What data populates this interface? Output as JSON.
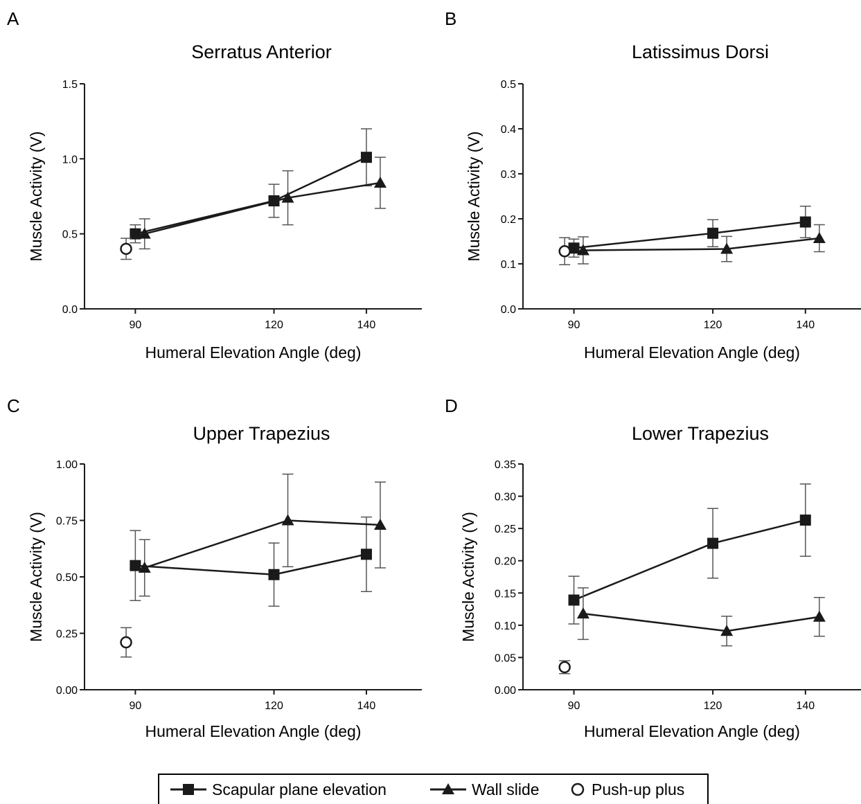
{
  "legend": {
    "items": [
      {
        "label": "Scapular plane elevation",
        "marker": "square-line-icon"
      },
      {
        "label": "Wall slide",
        "marker": "triangle-line-icon"
      },
      {
        "label": "Push-up plus",
        "marker": "open-circle-icon"
      }
    ]
  },
  "chart_data": [
    {
      "type": "line",
      "panel": "A",
      "title": "Serratus Anterior",
      "xlabel": "Humeral Elevation Angle (deg)",
      "ylabel": "Muscle Activity (V)",
      "xlim": [
        79,
        152
      ],
      "ylim": [
        0,
        1.5
      ],
      "xticks": [
        90,
        120,
        140
      ],
      "yticks": [
        0.0,
        0.5,
        1.0,
        1.5
      ],
      "ytick_labels": [
        "0.0",
        "0.5",
        "1.0",
        "1.5"
      ],
      "series": [
        {
          "name": "Scapular plane elevation",
          "marker": "square",
          "x": [
            90,
            120,
            140
          ],
          "y": [
            0.5,
            0.72,
            1.01
          ],
          "err": [
            0.06,
            0.11,
            0.19
          ]
        },
        {
          "name": "Wall slide",
          "marker": "triangle",
          "x": [
            92,
            123,
            143
          ],
          "y": [
            0.5,
            0.74,
            0.84
          ],
          "err": [
            0.1,
            0.18,
            0.17
          ]
        },
        {
          "name": "Push-up plus",
          "marker": "circle",
          "x": [
            88
          ],
          "y": [
            0.4
          ],
          "err": [
            0.07
          ]
        }
      ]
    },
    {
      "type": "line",
      "panel": "B",
      "title": "Latissimus Dorsi",
      "xlabel": "Humeral Elevation Angle (deg)",
      "ylabel": "Muscle Activity (V)",
      "xlim": [
        79,
        152
      ],
      "ylim": [
        0,
        0.5
      ],
      "xticks": [
        90,
        120,
        140
      ],
      "yticks": [
        0.0,
        0.1,
        0.2,
        0.3,
        0.4,
        0.5
      ],
      "ytick_labels": [
        "0.0",
        "0.1",
        "0.2",
        "0.3",
        "0.4",
        "0.5"
      ],
      "series": [
        {
          "name": "Scapular plane elevation",
          "marker": "square",
          "x": [
            90,
            120,
            140
          ],
          "y": [
            0.135,
            0.168,
            0.193
          ],
          "err": [
            0.02,
            0.03,
            0.035
          ]
        },
        {
          "name": "Wall slide",
          "marker": "triangle",
          "x": [
            92,
            123,
            143
          ],
          "y": [
            0.13,
            0.133,
            0.157
          ],
          "err": [
            0.03,
            0.028,
            0.03
          ]
        },
        {
          "name": "Push-up plus",
          "marker": "circle",
          "x": [
            88
          ],
          "y": [
            0.128
          ],
          "err": [
            0.03
          ]
        }
      ]
    },
    {
      "type": "line",
      "panel": "C",
      "title": "Upper Trapezius",
      "xlabel": "Humeral Elevation Angle (deg)",
      "ylabel": "Muscle Activity (V)",
      "xlim": [
        79,
        152
      ],
      "ylim": [
        0,
        1.0
      ],
      "xticks": [
        90,
        120,
        140
      ],
      "yticks": [
        0.0,
        0.25,
        0.5,
        0.75,
        1.0
      ],
      "ytick_labels": [
        "0.00",
        "0.25",
        "0.50",
        "0.75",
        "1.00"
      ],
      "series": [
        {
          "name": "Scapular plane elevation",
          "marker": "square",
          "x": [
            90,
            120,
            140
          ],
          "y": [
            0.55,
            0.51,
            0.6
          ],
          "err": [
            0.155,
            0.14,
            0.165
          ]
        },
        {
          "name": "Wall slide",
          "marker": "triangle",
          "x": [
            92,
            123,
            143
          ],
          "y": [
            0.54,
            0.75,
            0.73
          ],
          "err": [
            0.125,
            0.205,
            0.19
          ]
        },
        {
          "name": "Push-up plus",
          "marker": "circle",
          "x": [
            88
          ],
          "y": [
            0.21
          ],
          "err": [
            0.065
          ]
        }
      ]
    },
    {
      "type": "line",
      "panel": "D",
      "title": "Lower Trapezius",
      "xlabel": "Humeral Elevation Angle (deg)",
      "ylabel": "Muscle Activity (V)",
      "xlim": [
        79,
        152
      ],
      "ylim": [
        0,
        0.35
      ],
      "xticks": [
        90,
        120,
        140
      ],
      "yticks": [
        0.0,
        0.05,
        0.1,
        0.15,
        0.2,
        0.25,
        0.3,
        0.35
      ],
      "ytick_labels": [
        "0.00",
        "0.05",
        "0.10",
        "0.15",
        "0.20",
        "0.25",
        "0.30",
        "0.35"
      ],
      "series": [
        {
          "name": "Scapular plane elevation",
          "marker": "square",
          "x": [
            90,
            120,
            140
          ],
          "y": [
            0.139,
            0.227,
            0.263
          ],
          "err": [
            0.037,
            0.054,
            0.056
          ]
        },
        {
          "name": "Wall slide",
          "marker": "triangle",
          "x": [
            92,
            123,
            143
          ],
          "y": [
            0.118,
            0.091,
            0.113
          ],
          "err": [
            0.04,
            0.023,
            0.03
          ]
        },
        {
          "name": "Push-up plus",
          "marker": "circle",
          "x": [
            88
          ],
          "y": [
            0.035
          ],
          "err": [
            0.01
          ]
        }
      ]
    }
  ]
}
